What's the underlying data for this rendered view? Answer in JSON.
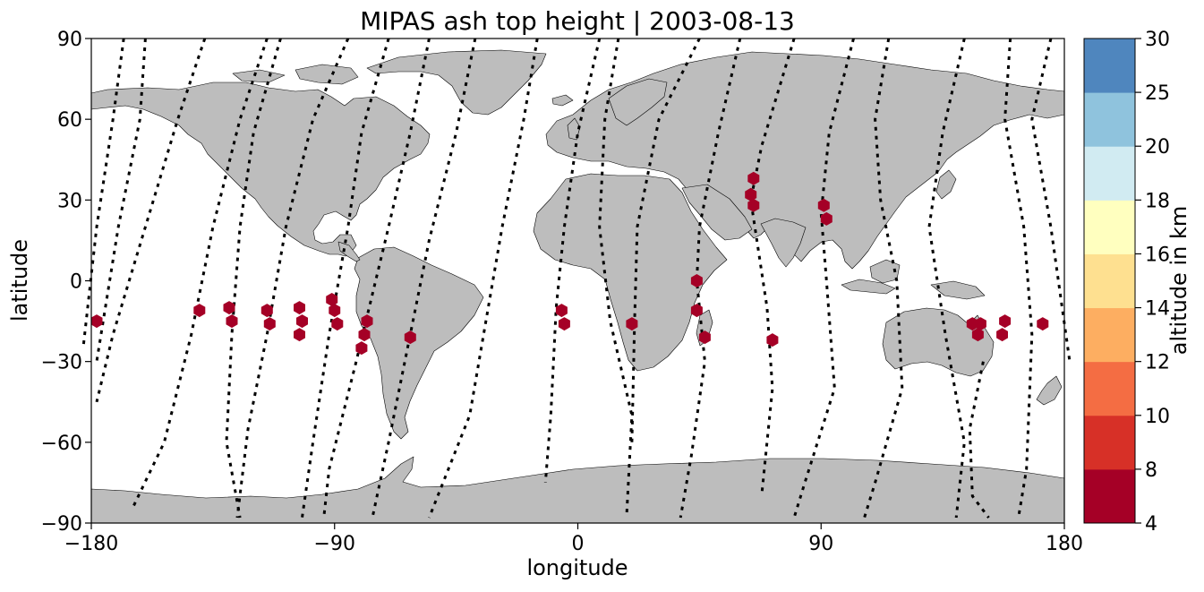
{
  "chart_data": {
    "type": "scatter",
    "title": "MIPAS ash top height | 2003-08-13",
    "xlabel": "longitude",
    "ylabel": "latitude",
    "xlim": [
      -180,
      180
    ],
    "ylim": [
      -90,
      90
    ],
    "xticks": [
      {
        "value": -180,
        "label": "−180"
      },
      {
        "value": -90,
        "label": "−90"
      },
      {
        "value": 0,
        "label": "0"
      },
      {
        "value": 90,
        "label": "90"
      },
      {
        "value": 180,
        "label": "180"
      }
    ],
    "yticks": [
      {
        "value": -90,
        "label": "−90"
      },
      {
        "value": -60,
        "label": "−60"
      },
      {
        "value": -30,
        "label": "−30"
      },
      {
        "value": 0,
        "label": "0"
      },
      {
        "value": 30,
        "label": "30"
      },
      {
        "value": 60,
        "label": "60"
      },
      {
        "value": 90,
        "label": "90"
      }
    ],
    "grid": false,
    "colorbar": {
      "label": "altitude in km",
      "levels": [
        4,
        8,
        10,
        12,
        14,
        16,
        18,
        20,
        25,
        30
      ],
      "colors": [
        "#a50026",
        "#d73027",
        "#f46d43",
        "#fdae61",
        "#fee090",
        "#ffffbf",
        "#e0f3f8",
        "#abd9e9",
        "#74add1",
        "#4575b4",
        "#313695"
      ],
      "bin_colors": [
        "#a50026",
        "#d73027",
        "#f46d43",
        "#fdae61",
        "#fee090",
        "#ffffbf",
        "#d1ebf2",
        "#8fc3dd",
        "#4f86be",
        "#313695"
      ]
    },
    "ash_points": [
      {
        "lon": -178,
        "lat": -15,
        "alt_km": 6
      },
      {
        "lon": -140,
        "lat": -11,
        "alt_km": 6
      },
      {
        "lon": -129,
        "lat": -10,
        "alt_km": 6
      },
      {
        "lon": -128,
        "lat": -15,
        "alt_km": 6
      },
      {
        "lon": -115,
        "lat": -11,
        "alt_km": 6
      },
      {
        "lon": -114,
        "lat": -16,
        "alt_km": 6
      },
      {
        "lon": -103,
        "lat": -10,
        "alt_km": 6
      },
      {
        "lon": -102,
        "lat": -15,
        "alt_km": 6
      },
      {
        "lon": -103,
        "lat": -20,
        "alt_km": 6
      },
      {
        "lon": -91,
        "lat": -7,
        "alt_km": 6
      },
      {
        "lon": -90,
        "lat": -11,
        "alt_km": 6
      },
      {
        "lon": -89,
        "lat": -16,
        "alt_km": 6
      },
      {
        "lon": -78,
        "lat": -15,
        "alt_km": 6
      },
      {
        "lon": -79,
        "lat": -20,
        "alt_km": 6
      },
      {
        "lon": -80,
        "lat": -25,
        "alt_km": 6
      },
      {
        "lon": -62,
        "lat": -21,
        "alt_km": 6
      },
      {
        "lon": -6,
        "lat": -11,
        "alt_km": 6
      },
      {
        "lon": -5,
        "lat": -16,
        "alt_km": 6
      },
      {
        "lon": 20,
        "lat": -16,
        "alt_km": 6
      },
      {
        "lon": 44,
        "lat": 0,
        "alt_km": 6
      },
      {
        "lon": 44,
        "lat": -11,
        "alt_km": 6
      },
      {
        "lon": 47,
        "lat": -21,
        "alt_km": 6
      },
      {
        "lon": 65,
        "lat": 38,
        "alt_km": 6
      },
      {
        "lon": 64,
        "lat": 32,
        "alt_km": 6
      },
      {
        "lon": 65,
        "lat": 28,
        "alt_km": 6
      },
      {
        "lon": 72,
        "lat": -22,
        "alt_km": 6
      },
      {
        "lon": 91,
        "lat": 28,
        "alt_km": 6
      },
      {
        "lon": 92,
        "lat": 23,
        "alt_km": 6
      },
      {
        "lon": 146,
        "lat": -16,
        "alt_km": 6
      },
      {
        "lon": 149,
        "lat": -16,
        "alt_km": 6
      },
      {
        "lon": 148,
        "lat": -20,
        "alt_km": 6
      },
      {
        "lon": 158,
        "lat": -15,
        "alt_km": 6
      },
      {
        "lon": 157,
        "lat": -20,
        "alt_km": 6
      },
      {
        "lon": 172,
        "lat": -16,
        "alt_km": 6
      }
    ],
    "orbit_tracks": [
      [
        [
          -168,
          90
        ],
        [
          -172,
          60
        ],
        [
          -178,
          20
        ],
        [
          -183,
          -25
        ]
      ],
      [
        [
          -160,
          90
        ],
        [
          -162,
          60
        ],
        [
          -170,
          20
        ],
        [
          -178,
          -30
        ]
      ],
      [
        [
          -138,
          90
        ],
        [
          -148,
          60
        ],
        [
          -160,
          20
        ],
        [
          -172,
          -20
        ],
        [
          -178,
          -45
        ]
      ],
      [
        [
          -115,
          90
        ],
        [
          -125,
          60
        ],
        [
          -135,
          20
        ],
        [
          -143,
          -20
        ],
        [
          -153,
          -60
        ],
        [
          -165,
          -85
        ]
      ],
      [
        [
          -110,
          90
        ],
        [
          -120,
          55
        ],
        [
          -125,
          20
        ],
        [
          -128,
          -20
        ],
        [
          -130,
          -60
        ],
        [
          -125,
          -88
        ]
      ],
      [
        [
          -85,
          90
        ],
        [
          -98,
          60
        ],
        [
          -108,
          20
        ],
        [
          -115,
          -20
        ],
        [
          -122,
          -55
        ],
        [
          -126,
          -88
        ]
      ],
      [
        [
          -70,
          90
        ],
        [
          -80,
          55
        ],
        [
          -85,
          20
        ],
        [
          -92,
          -20
        ],
        [
          -98,
          -60
        ],
        [
          -102,
          -88
        ]
      ],
      [
        [
          -55,
          90
        ],
        [
          -62,
          55
        ],
        [
          -70,
          20
        ],
        [
          -82,
          -30
        ],
        [
          -92,
          -70
        ],
        [
          -94,
          -88
        ]
      ],
      [
        [
          -38,
          90
        ],
        [
          -45,
          55
        ],
        [
          -55,
          15
        ],
        [
          -62,
          -20
        ],
        [
          -70,
          -60
        ],
        [
          -76,
          -88
        ]
      ],
      [
        [
          -15,
          90
        ],
        [
          -20,
          60
        ],
        [
          -28,
          20
        ],
        [
          -34,
          -15
        ],
        [
          -40,
          -50
        ],
        [
          -55,
          -88
        ]
      ],
      [
        [
          8,
          90
        ],
        [
          0,
          55
        ],
        [
          -5,
          20
        ],
        [
          -8,
          -10
        ],
        [
          -10,
          -50
        ],
        [
          -12,
          -75
        ]
      ],
      [
        [
          15,
          90
        ],
        [
          10,
          60
        ],
        [
          8,
          20
        ],
        [
          12,
          -15
        ],
        [
          20,
          -50
        ],
        [
          18,
          -88
        ]
      ],
      [
        [
          45,
          90
        ],
        [
          30,
          60
        ],
        [
          22,
          20
        ],
        [
          21,
          -15
        ],
        [
          20,
          -60
        ]
      ],
      [
        [
          60,
          90
        ],
        [
          52,
          55
        ],
        [
          45,
          20
        ],
        [
          44,
          0
        ],
        [
          47,
          -30
        ],
        [
          42,
          -65
        ],
        [
          38,
          -88
        ]
      ],
      [
        [
          80,
          90
        ],
        [
          68,
          50
        ],
        [
          64,
          30
        ],
        [
          70,
          -10
        ],
        [
          72,
          -40
        ],
        [
          68,
          -80
        ]
      ],
      [
        [
          102,
          90
        ],
        [
          93,
          55
        ],
        [
          90,
          25
        ],
        [
          92,
          0
        ],
        [
          95,
          -40
        ],
        [
          84,
          -75
        ],
        [
          80,
          -88
        ]
      ],
      [
        [
          115,
          90
        ],
        [
          110,
          60
        ],
        [
          112,
          30
        ],
        [
          118,
          0
        ],
        [
          120,
          -40
        ],
        [
          110,
          -75
        ],
        [
          106,
          -88
        ]
      ],
      [
        [
          143,
          90
        ],
        [
          135,
          55
        ],
        [
          130,
          20
        ],
        [
          136,
          -20
        ],
        [
          143,
          -60
        ],
        [
          140,
          -88
        ]
      ],
      [
        [
          160,
          90
        ],
        [
          158,
          60
        ],
        [
          165,
          20
        ],
        [
          168,
          -20
        ],
        [
          166,
          -70
        ],
        [
          163,
          -88
        ]
      ],
      [
        [
          175,
          90
        ],
        [
          168,
          60
        ],
        [
          175,
          20
        ],
        [
          182,
          -30
        ]
      ],
      [
        [
          150,
          -30
        ],
        [
          145,
          -55
        ],
        [
          146,
          -80
        ],
        [
          152,
          -88
        ]
      ]
    ]
  }
}
